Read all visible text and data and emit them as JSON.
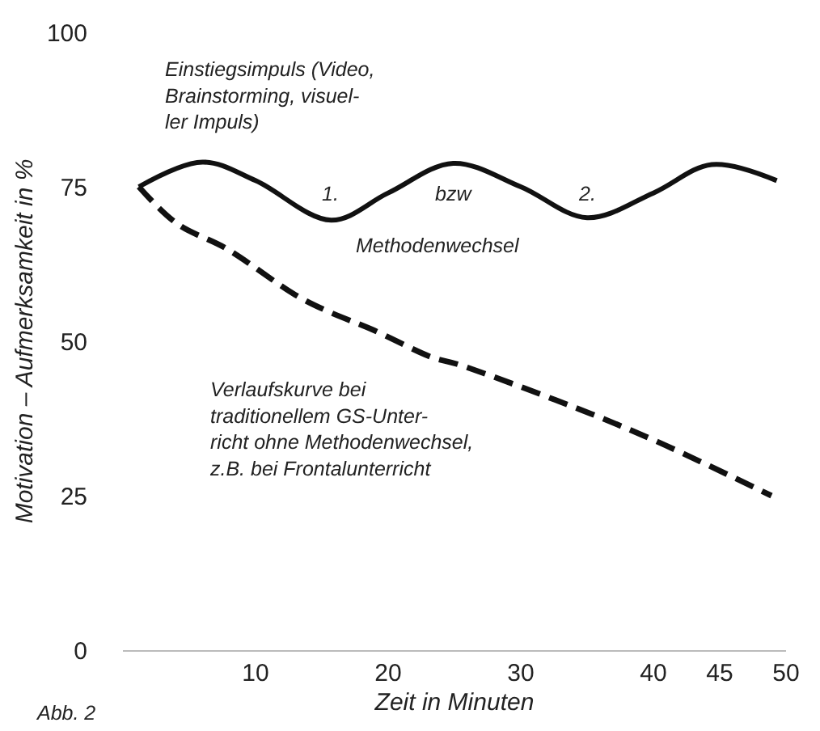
{
  "chart_data": {
    "type": "line",
    "xlabel": "Zeit in Minuten",
    "ylabel": "Motivation – Aufmerksamkeit in %",
    "xlim": [
      0,
      50
    ],
    "xticks": [
      10,
      20,
      30,
      40,
      45,
      50
    ],
    "ylim": [
      0,
      100
    ],
    "yticks": [
      0,
      25,
      50,
      75,
      100
    ],
    "series": [
      {
        "color": "#111111",
        "line_style": "solid",
        "x": [
          1.2,
          6,
          10,
          15.7,
          20,
          24.9,
          30,
          35,
          40,
          44.4,
          49.3
        ],
        "values": [
          75,
          79,
          76,
          69.6,
          74,
          78.8,
          75,
          70,
          74,
          78.6,
          76
        ]
      },
      {
        "color": "#111111",
        "line_style": "dashed",
        "x": [
          1.2,
          4.1,
          7.8,
          13,
          15.5,
          18.8,
          23.3,
          25.2,
          32.6,
          39.5,
          48.9
        ],
        "values": [
          75,
          69,
          65,
          57.5,
          54.8,
          51.9,
          47.4,
          46.3,
          40.5,
          34.5,
          25
        ]
      }
    ],
    "annotations": [
      "Einstiegsimpuls (Video,\nBrainstorming, visuel-\nler Impuls)",
      "1.",
      "bzw",
      "2.",
      "Methodenwechsel",
      "Verlaufskurve bei\ntraditionellem GS-Unter-\nricht ohne Methodenwechsel,\nz.B. bei Frontalunterricht",
      "Abb. 2"
    ]
  }
}
